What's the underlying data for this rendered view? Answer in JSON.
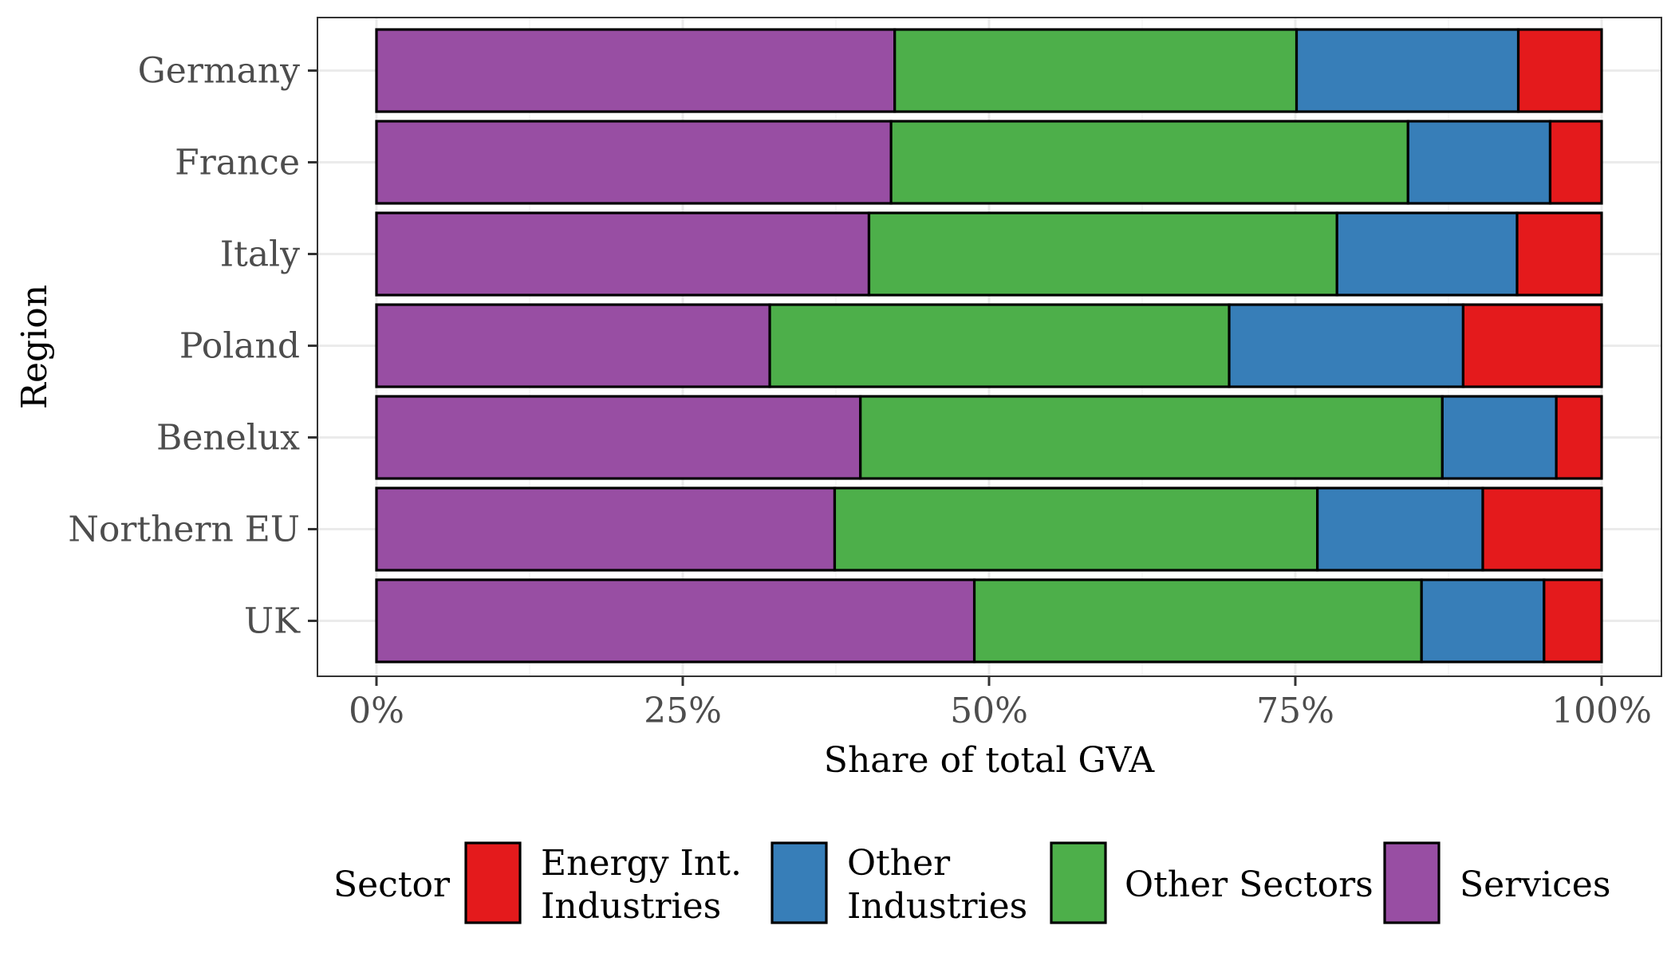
{
  "chart_data": {
    "type": "bar",
    "orientation": "horizontal",
    "stacked": true,
    "categories": [
      "Germany",
      "France",
      "Italy",
      "Poland",
      "Benelux",
      "Northern EU",
      "UK"
    ],
    "series": [
      {
        "name": "Services",
        "color": "#984EA3",
        "values": [
          42.3,
          42.0,
          40.2,
          32.1,
          39.5,
          37.4,
          48.8
        ]
      },
      {
        "name": "Other Sectors",
        "color": "#4DAF4A",
        "values": [
          32.8,
          42.2,
          38.2,
          37.5,
          47.5,
          39.4,
          36.5
        ]
      },
      {
        "name": "Other Industries",
        "color": "#377EB8",
        "values": [
          18.1,
          11.6,
          14.7,
          19.1,
          9.3,
          13.5,
          10.0
        ]
      },
      {
        "name": "Energy Int. Industries",
        "color": "#E41A1C",
        "values": [
          6.8,
          4.2,
          6.9,
          11.3,
          3.7,
          9.7,
          4.7
        ]
      }
    ],
    "xlim": [
      0,
      100
    ],
    "x_ticks": [
      "0%",
      "25%",
      "50%",
      "75%",
      "100%"
    ],
    "xlabel": "Share of total GVA",
    "ylabel": "Region",
    "grid": true,
    "legend": {
      "position": "bottom",
      "title": "Sector",
      "items": [
        {
          "label_lines": [
            "Energy Int.",
            "Industries"
          ],
          "color": "#E41A1C"
        },
        {
          "label_lines": [
            "Other",
            "Industries"
          ],
          "color": "#377EB8"
        },
        {
          "label_lines": [
            "Other Sectors"
          ],
          "color": "#4DAF4A"
        },
        {
          "label_lines": [
            "Services"
          ],
          "color": "#984EA3"
        }
      ]
    }
  }
}
